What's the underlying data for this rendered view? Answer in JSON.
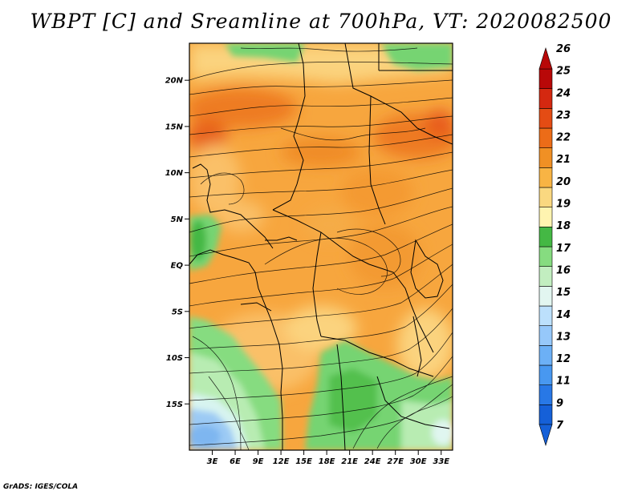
{
  "title": "WBPT [C] and Sreamline at 700hPa, VT: 2020082500",
  "credit": "GrADS: IGES/COLA",
  "map": {
    "lat_labels": [
      "20N",
      "15N",
      "10N",
      "5N",
      "EQ",
      "5S",
      "10S",
      "15S"
    ],
    "lat_values": [
      20,
      15,
      10,
      5,
      0,
      -5,
      -10,
      -15
    ],
    "lon_labels": [
      "3E",
      "6E",
      "9E",
      "12E",
      "15E",
      "18E",
      "21E",
      "24E",
      "27E",
      "30E",
      "33E"
    ],
    "lon_values": [
      3,
      6,
      9,
      12,
      15,
      18,
      21,
      24,
      27,
      30,
      33
    ],
    "lat_range": [
      -20,
      24
    ],
    "lon_range": [
      0,
      34.5
    ]
  },
  "colorbar": {
    "labels": [
      "7",
      "9",
      "11",
      "12",
      "13",
      "14",
      "15",
      "16",
      "17",
      "18",
      "19",
      "20",
      "21",
      "22",
      "23",
      "24",
      "25",
      "26"
    ],
    "colors": [
      "#1560d8",
      "#2878e6",
      "#4898f0",
      "#6cb0f6",
      "#96c8fa",
      "#bce0fc",
      "#e2f6f0",
      "#c2eec0",
      "#86dc80",
      "#44b844",
      "#fff4b0",
      "#fad880",
      "#f8b444",
      "#f09024",
      "#ec6c18",
      "#e44c14",
      "#d42810",
      "#b80808"
    ]
  }
}
